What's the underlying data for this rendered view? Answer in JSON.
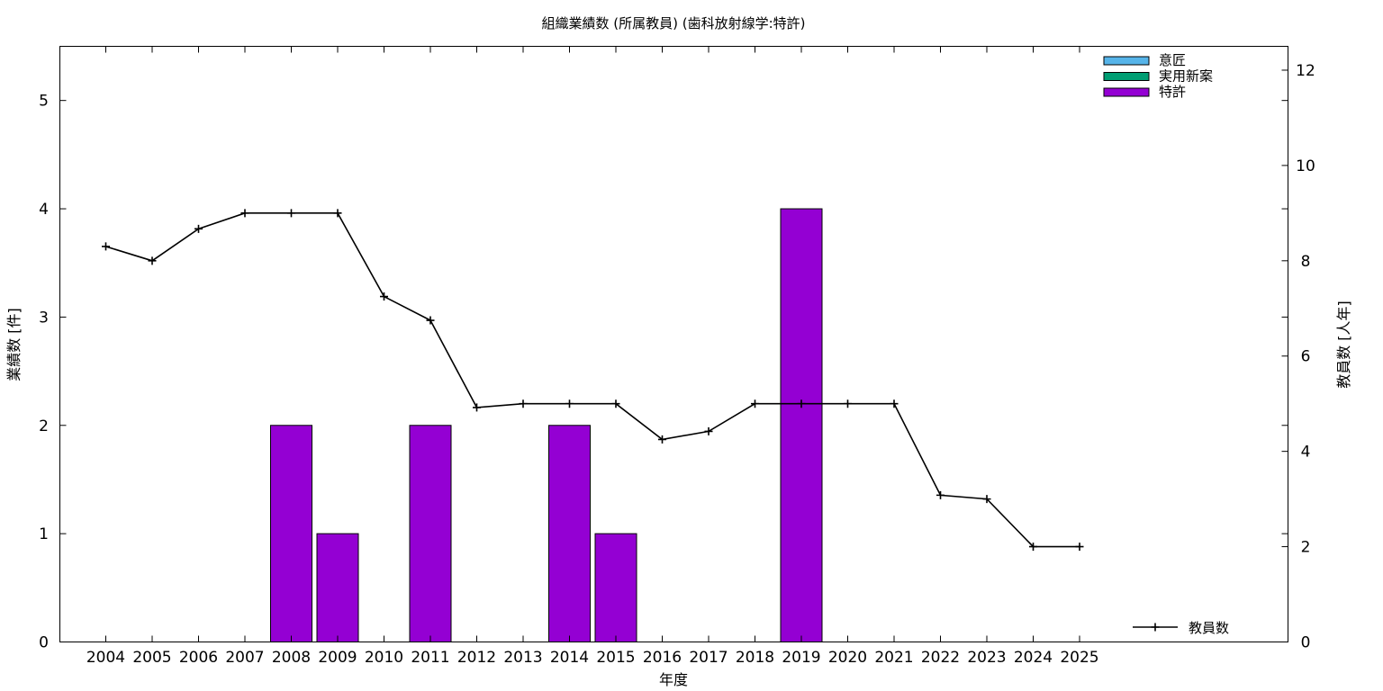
{
  "chart_data": {
    "type": "bar",
    "title": "組織業績数 (所属教員) (歯科放射線学:特許)",
    "xlabel": "年度",
    "ylabel": "業績数 [件]",
    "y2label": "教員数 [人年]",
    "categories": [
      "2004",
      "2005",
      "2006",
      "2007",
      "2008",
      "2009",
      "2010",
      "2011",
      "2012",
      "2013",
      "2014",
      "2015",
      "2016",
      "2017",
      "2018",
      "2019",
      "2020",
      "2021",
      "2022",
      "2023",
      "2024",
      "2025"
    ],
    "ylim": [
      0,
      5.5
    ],
    "y2lim": [
      0,
      12.5
    ],
    "yticks": [
      "0",
      "1",
      "2",
      "3",
      "4",
      "5"
    ],
    "y2ticks": [
      "0",
      "2",
      "4",
      "6",
      "8",
      "10",
      "12"
    ],
    "series": [
      {
        "name": "意匠",
        "kind": "bar",
        "color": "#56b4e9",
        "values": [
          0,
          0,
          0,
          0,
          0,
          0,
          0,
          0,
          0,
          0,
          0,
          0,
          0,
          0,
          0,
          0,
          0,
          0,
          0,
          0,
          0,
          0
        ]
      },
      {
        "name": "実用新案",
        "kind": "bar",
        "color": "#009e73",
        "values": [
          0,
          0,
          0,
          0,
          0,
          0,
          0,
          0,
          0,
          0,
          0,
          0,
          0,
          0,
          0,
          0,
          0,
          0,
          0,
          0,
          0,
          0
        ]
      },
      {
        "name": "特許",
        "kind": "bar",
        "color": "#9400d3",
        "values": [
          0,
          0,
          0,
          0,
          2,
          1,
          0,
          2,
          0,
          0,
          2,
          1,
          0,
          0,
          0,
          4,
          0,
          0,
          0,
          0,
          0,
          0
        ]
      },
      {
        "name": "教員数",
        "kind": "line",
        "axis": "right",
        "color": "#000000",
        "values": [
          8.3,
          8.0,
          8.67,
          9.0,
          9.0,
          9.0,
          7.25,
          6.75,
          4.92,
          5.0,
          5.0,
          5.0,
          4.25,
          4.42,
          5.0,
          5.0,
          5.0,
          5.0,
          3.08,
          3.0,
          2.0,
          2.0
        ]
      }
    ],
    "legend_position": "top-right",
    "grid": false
  }
}
